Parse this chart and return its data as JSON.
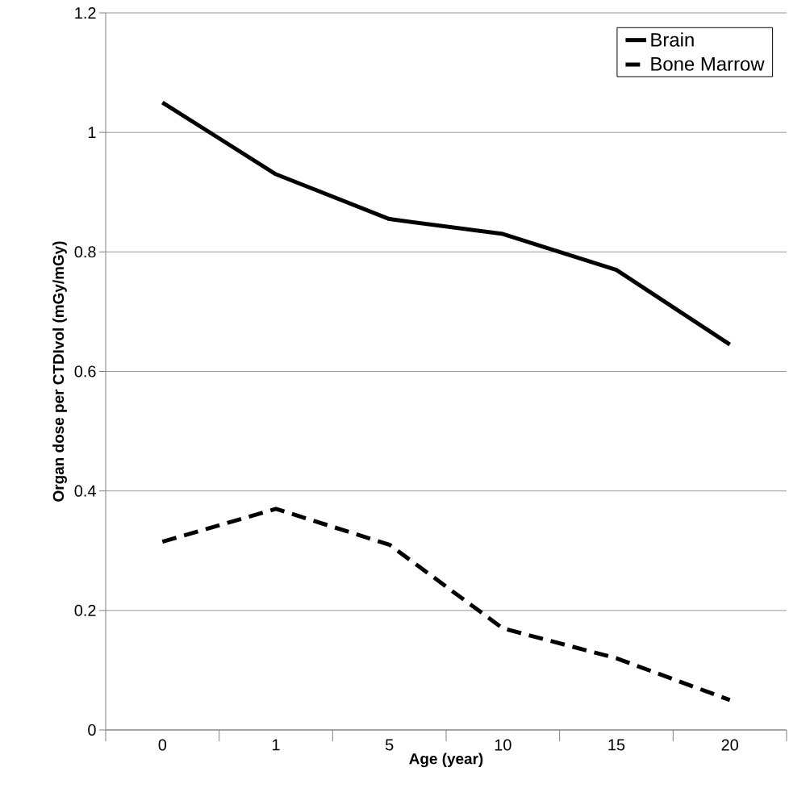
{
  "chart_data": {
    "type": "line",
    "xlabel": "Age (year)",
    "ylabel": "Organ dose per CTDIvol (mGy/mGy)",
    "categories": [
      "0",
      "1",
      "5",
      "10",
      "15",
      "20"
    ],
    "series": [
      {
        "name": "Brain",
        "color": "#000000",
        "line_style": "solid",
        "values": [
          1.05,
          0.93,
          0.855,
          0.83,
          0.77,
          0.645
        ]
      },
      {
        "name": "Bone Marrow",
        "color": "#000000",
        "line_style": "dashed",
        "values": [
          0.315,
          0.37,
          0.31,
          0.17,
          0.12,
          0.05
        ]
      }
    ],
    "ylim": [
      0,
      1.2
    ],
    "yticks": [
      0,
      0.2,
      0.4,
      0.6,
      0.8,
      1,
      1.2
    ],
    "grid": "y",
    "legend": "top right",
    "marker": "none"
  }
}
